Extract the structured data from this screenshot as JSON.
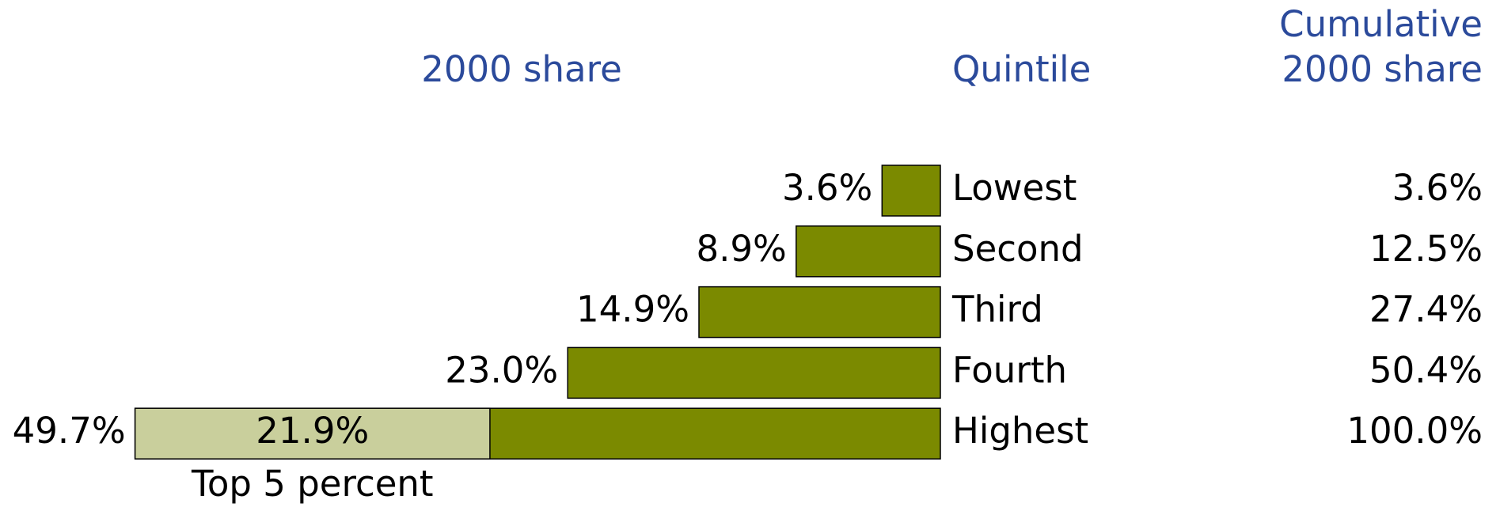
{
  "chart_data": {
    "type": "bar",
    "orientation": "horizontal",
    "headers": {
      "share": "2000 share",
      "quintile": "Quintile",
      "cumulative": [
        "Cumulative",
        "2000 share"
      ]
    },
    "categories": [
      "Lowest",
      "Second",
      "Third",
      "Fourth",
      "Highest"
    ],
    "values": [
      3.6,
      8.9,
      14.9,
      23.0,
      49.7
    ],
    "value_labels": [
      "3.6%",
      "8.9%",
      "14.9%",
      "23.0%",
      "49.7%"
    ],
    "color": "#7b8a00",
    "cumulative": [
      3.6,
      12.5,
      27.4,
      50.4,
      100.0
    ],
    "cumulative_labels": [
      "3.6%",
      "12.5%",
      "27.4%",
      "50.4%",
      "100.0%"
    ],
    "highlight": {
      "name": "Top 5 percent",
      "value": 21.9,
      "value_label": "21.9%",
      "color": "#c9cf9c"
    }
  }
}
